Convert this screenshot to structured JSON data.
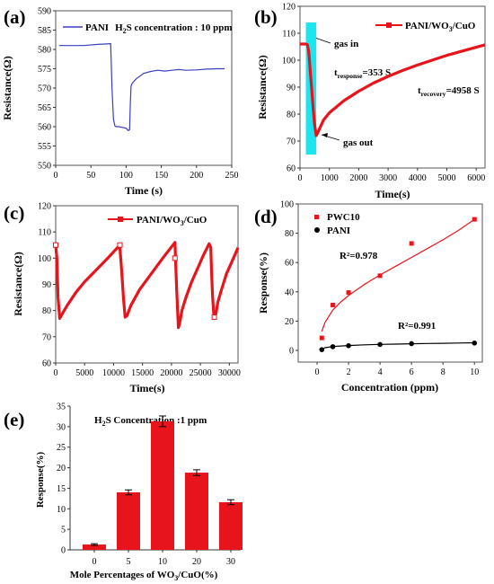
{
  "colors": {
    "panel_a_line": "#3b3fbf",
    "red": "#e8141c",
    "black": "#000000",
    "cyan_band": "#19e6f0",
    "frame": "#555555"
  },
  "chart_data": [
    {
      "panel": "(a)",
      "type": "line",
      "legend_prefix": "PANI",
      "legend_h": "H",
      "legend_sub": "2",
      "legend_rest": "S concentration : 10 ppm",
      "xlabel": "Time  (s)",
      "ylabel": "Resistance(Ω)",
      "xlim": [
        0,
        250
      ],
      "ylim": [
        550,
        590
      ],
      "xticks": [
        0,
        50,
        100,
        150,
        200,
        250
      ],
      "yticks": [
        550,
        555,
        560,
        565,
        570,
        575,
        580,
        585,
        590
      ],
      "series": [
        {
          "x": [
            5,
            20,
            40,
            60,
            78,
            80,
            82,
            84,
            86,
            90,
            95,
            100,
            103,
            105,
            106,
            107,
            108,
            110,
            115,
            125,
            135,
            145,
            155,
            165,
            175,
            185,
            200,
            215,
            230,
            240
          ],
          "y": [
            581,
            581,
            581,
            581.3,
            581.5,
            570,
            562,
            560.2,
            560,
            560,
            559.8,
            559.6,
            559,
            559.2,
            566,
            570.5,
            571,
            571.5,
            572.5,
            573.8,
            574.3,
            574.6,
            574.4,
            574.6,
            574.8,
            574.6,
            574.7,
            574.9,
            575,
            575
          ]
        }
      ]
    },
    {
      "panel": "(b)",
      "type": "line",
      "legend": "PANI/WO3/CuO",
      "legend_parts": [
        "PANI/WO",
        "3",
        "/CuO"
      ],
      "xlabel": "Time(s)",
      "ylabel": "Resistance(Ω)",
      "xlim": [
        0,
        6300
      ],
      "ylim": [
        60,
        120
      ],
      "xticks": [
        0,
        1000,
        2000,
        3000,
        4000,
        5000,
        6000
      ],
      "yticks": [
        60,
        70,
        80,
        90,
        100,
        110,
        120
      ],
      "annotations": {
        "gas_in": "gas in",
        "gas_out": "gas out",
        "t_response": [
          "t",
          "response",
          "=353 S"
        ],
        "t_recovery": [
          "t",
          "recovery",
          "=4958 S"
        ]
      },
      "band": [
        200,
        553
      ],
      "series": [
        {
          "x": [
            0,
            100,
            200,
            250,
            300,
            350,
            400,
            450,
            500,
            553,
            600,
            800,
            1000,
            1500,
            2000,
            2500,
            3000,
            3500,
            4000,
            4500,
            5000,
            5500,
            6000,
            6300
          ],
          "y": [
            106,
            106,
            106,
            105.8,
            103,
            96,
            89,
            82,
            76,
            72,
            73,
            77.8,
            80.5,
            85,
            88.5,
            91.5,
            94,
            96.2,
            98.2,
            100,
            101.8,
            103.3,
            104.8,
            105.7
          ]
        }
      ]
    },
    {
      "panel": "(c)",
      "type": "line",
      "legend_parts": [
        "PANI/WO",
        "3",
        "/CuO"
      ],
      "xlabel": "Time(s)",
      "ylabel": "Resistance(Ω)",
      "xlim": [
        0,
        31500
      ],
      "ylim": [
        60,
        120
      ],
      "xticks": [
        0,
        5000,
        10000,
        15000,
        20000,
        25000,
        30000
      ],
      "yticks": [
        60,
        70,
        80,
        90,
        100,
        110,
        120
      ],
      "series": [
        {
          "x": [
            0,
            200,
            400,
            700,
            1200,
            2000,
            3500,
            5000,
            7000,
            9000,
            11000,
            11100,
            11400,
            11700,
            12000,
            12300,
            13000,
            14500,
            16500,
            18500,
            20600,
            20700,
            20900,
            21100,
            21200,
            21400,
            21800,
            22500,
            23500,
            24500,
            25500,
            26500,
            26800,
            26900,
            27100,
            27300,
            27500,
            27700,
            28000,
            28500,
            29500,
            30500,
            31500
          ],
          "y": [
            105,
            100,
            85,
            77,
            79,
            82,
            87,
            91,
            95.5,
            100,
            104.8,
            104,
            95,
            85,
            77.5,
            78,
            82,
            88,
            94,
            100,
            106,
            100,
            88,
            78,
            73.5,
            75,
            80,
            85,
            91,
            96,
            101,
            105.5,
            104,
            96,
            86,
            79,
            77.5,
            79,
            83,
            87,
            94,
            99,
            104
          ]
        }
      ],
      "markers": {
        "x": [
          0,
          11100,
          20600,
          27400
        ],
        "y": [
          105,
          105,
          100,
          77.5
        ]
      }
    },
    {
      "panel": "(d)",
      "type": "scatter",
      "xlabel": "Concentration (ppm)",
      "ylabel": "Response(%)",
      "xlim": [
        -1.2,
        10.5
      ],
      "ylim": [
        -8,
        100
      ],
      "xticks": [
        0,
        2,
        4,
        6,
        8,
        10
      ],
      "yticks": [
        0,
        20,
        40,
        60,
        80,
        100
      ],
      "r2_labels": {
        "pwc10": "R²=0.978",
        "pani": "R²=0.991"
      },
      "series": [
        {
          "name": "PWC10",
          "x": [
            0.3,
            1,
            2,
            4,
            6,
            10
          ],
          "y": [
            8.5,
            31,
            39.5,
            51,
            73,
            89.5
          ],
          "fit": {
            "x": [
              0.3,
              0.5,
              1,
              1.5,
              2,
              3,
              4,
              5,
              6,
              7,
              8,
              9,
              10
            ],
            "y": [
              13,
              19,
              27.5,
              33,
              37.5,
              45,
              51.5,
              57.5,
              63.5,
              69.5,
              75.5,
              82,
              89.5
            ]
          }
        },
        {
          "name": "PANI",
          "x": [
            0.3,
            1,
            2,
            4,
            6,
            10
          ],
          "y": [
            0.5,
            2.5,
            3.2,
            4,
            4.6,
            5
          ],
          "fit": {
            "x": [
              0.3,
              0.5,
              1,
              1.5,
              2,
              3,
              4,
              5,
              6,
              7,
              8,
              9,
              10
            ],
            "y": [
              0.8,
              1.8,
              2.6,
              3,
              3.3,
              3.8,
              4.1,
              4.3,
              4.5,
              4.7,
              4.8,
              5,
              5.2
            ]
          }
        }
      ]
    },
    {
      "panel": "(e)",
      "type": "bar",
      "title_parts": [
        "H",
        "2",
        "S Concentration :1 ppm"
      ],
      "xlabel": "Mole Percentages of WO3/CuO(%)",
      "xlabel_parts": [
        "Mole Percentages of WO",
        "3",
        "/CuO(%)"
      ],
      "ylabel": "Response(%)",
      "categories": [
        "0",
        "5",
        "10",
        "20",
        "30"
      ],
      "values": [
        1.3,
        14,
        31.3,
        18.8,
        11.6
      ],
      "errors": [
        0.2,
        0.6,
        1.3,
        0.7,
        0.6
      ],
      "ylim": [
        0,
        35
      ],
      "yticks": [
        0,
        5,
        10,
        15,
        20,
        25,
        30,
        35
      ]
    }
  ]
}
